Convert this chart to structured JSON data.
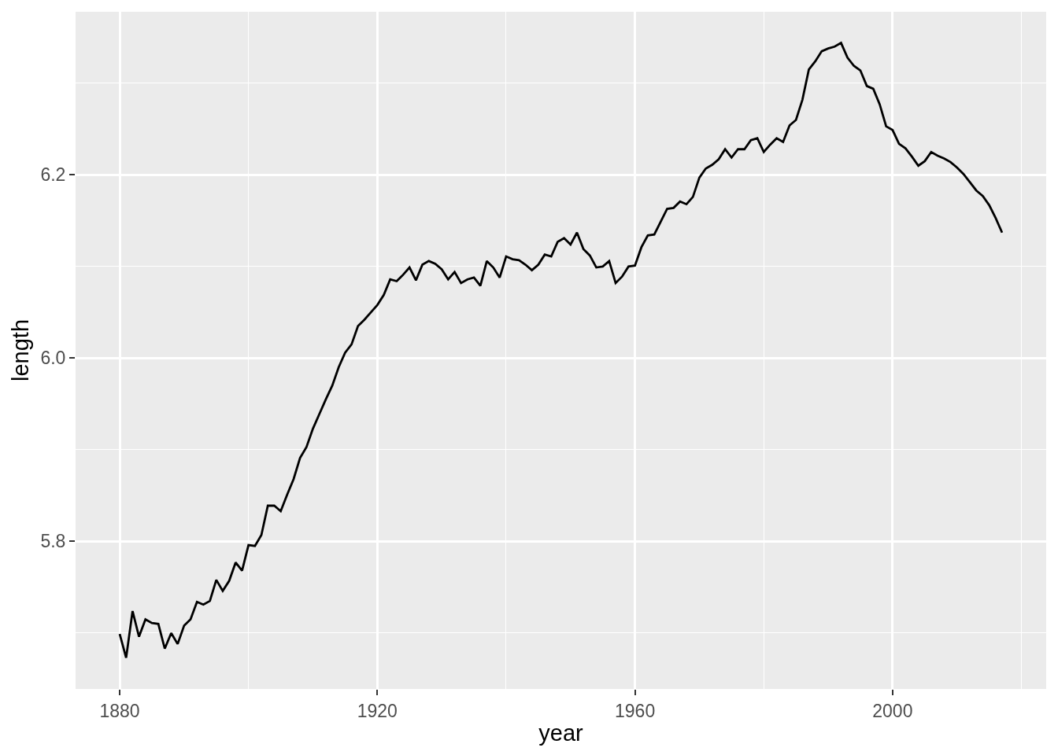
{
  "chart_data": {
    "type": "line",
    "xlabel": "year",
    "ylabel": "length",
    "color": "#000000",
    "grid": true,
    "x": [
      1880,
      1881,
      1882,
      1883,
      1884,
      1885,
      1886,
      1887,
      1888,
      1889,
      1890,
      1891,
      1892,
      1893,
      1894,
      1895,
      1896,
      1897,
      1898,
      1899,
      1900,
      1901,
      1902,
      1903,
      1904,
      1905,
      1906,
      1907,
      1908,
      1909,
      1910,
      1911,
      1912,
      1913,
      1914,
      1915,
      1916,
      1917,
      1918,
      1919,
      1920,
      1921,
      1922,
      1923,
      1924,
      1925,
      1926,
      1927,
      1928,
      1929,
      1930,
      1931,
      1932,
      1933,
      1934,
      1935,
      1936,
      1937,
      1938,
      1939,
      1940,
      1941,
      1942,
      1943,
      1944,
      1945,
      1946,
      1947,
      1948,
      1949,
      1950,
      1951,
      1952,
      1953,
      1954,
      1955,
      1956,
      1957,
      1958,
      1959,
      1960,
      1961,
      1962,
      1963,
      1964,
      1965,
      1966,
      1967,
      1968,
      1969,
      1970,
      1971,
      1972,
      1973,
      1974,
      1975,
      1976,
      1977,
      1978,
      1979,
      1980,
      1981,
      1982,
      1983,
      1984,
      1985,
      1986,
      1987,
      1988,
      1989,
      1990,
      1991,
      1992,
      1993,
      1994,
      1995,
      1996,
      1997,
      1998,
      1999,
      2000,
      2001,
      2002,
      2003,
      2004,
      2005,
      2006,
      2007,
      2008,
      2009,
      2010,
      2011,
      2012,
      2013,
      2014,
      2015,
      2016,
      2017
    ],
    "values": [
      5.699,
      5.673,
      5.724,
      5.696,
      5.715,
      5.711,
      5.71,
      5.683,
      5.7,
      5.688,
      5.708,
      5.715,
      5.734,
      5.731,
      5.735,
      5.758,
      5.746,
      5.757,
      5.777,
      5.768,
      5.796,
      5.795,
      5.807,
      5.839,
      5.839,
      5.833,
      5.851,
      5.868,
      5.891,
      5.903,
      5.923,
      5.939,
      5.955,
      5.97,
      5.99,
      6.006,
      6.015,
      6.035,
      6.042,
      6.05,
      6.058,
      6.069,
      6.086,
      6.084,
      6.091,
      6.099,
      6.085,
      6.102,
      6.106,
      6.103,
      6.097,
      6.086,
      6.094,
      6.082,
      6.086,
      6.088,
      6.079,
      6.106,
      6.099,
      6.088,
      6.111,
      6.108,
      6.107,
      6.102,
      6.096,
      6.102,
      6.113,
      6.111,
      6.127,
      6.131,
      6.124,
      6.137,
      6.119,
      6.112,
      6.099,
      6.1,
      6.106,
      6.082,
      6.089,
      6.1,
      6.101,
      6.121,
      6.134,
      6.135,
      6.149,
      6.163,
      6.164,
      6.171,
      6.168,
      6.176,
      6.197,
      6.207,
      6.211,
      6.217,
      6.228,
      6.219,
      6.228,
      6.228,
      6.238,
      6.24,
      6.225,
      6.233,
      6.24,
      6.236,
      6.254,
      6.26,
      6.282,
      6.315,
      6.324,
      6.335,
      6.338,
      6.34,
      6.344,
      6.328,
      6.319,
      6.314,
      6.297,
      6.294,
      6.277,
      6.253,
      6.249,
      6.234,
      6.229,
      6.22,
      6.21,
      6.215,
      6.225,
      6.221,
      6.218,
      6.214,
      6.208,
      6.201,
      6.192,
      6.183,
      6.177,
      6.167,
      6.153,
      6.137
    ],
    "xlim": [
      1873.15,
      2023.85
    ],
    "xticks": [
      1880,
      {
        "value": 1900,
        "label": null
      },
      1920,
      {
        "value": 1940,
        "label": null
      },
      1960,
      {
        "value": 1980,
        "label": null
      },
      2000,
      {
        "value": 2020,
        "label": null
      }
    ],
    "ylim": [
      5.639,
      6.378
    ],
    "yticks": [
      {
        "value": 5.7,
        "label": null
      },
      5.8,
      {
        "value": 5.9,
        "label": null
      },
      {
        "value": 6.0,
        "label": "6.0"
      },
      {
        "value": 6.1,
        "label": null
      },
      6.2,
      {
        "value": 6.3,
        "label": null
      }
    ]
  }
}
